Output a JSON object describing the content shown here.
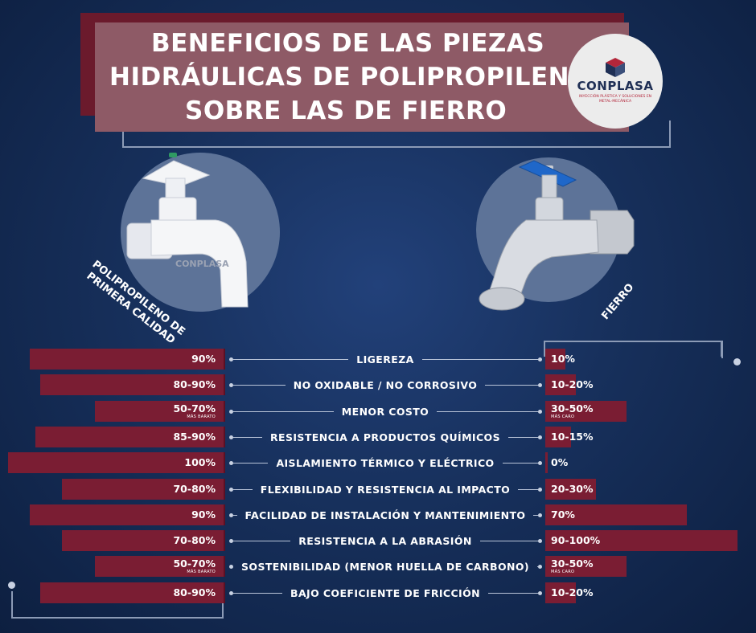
{
  "title": {
    "lines": [
      "BENEFICIOS DE LAS PIEZAS",
      "HIDRÁULICAS DE POLIPROPILENO",
      "SOBRE LAS DE FIERRO"
    ]
  },
  "logo": {
    "name": "CONPLASA",
    "subtitle": "INYECCIÓN PLÁSTICA Y SOLUCIONES EN METAL-MECÁNICA"
  },
  "left_product": {
    "image_icon": "white-plastic-faucet-icon",
    "brand_mark": "CONPLASA",
    "label_lines": [
      "POLIPROPILENO DE",
      "PRIMERA CALIDAD"
    ]
  },
  "right_product": {
    "image_icon": "metal-faucet-icon",
    "label": "FIERRO"
  },
  "colors": {
    "bar": "#7a1d33",
    "background": "#17305c",
    "title_box": "#8e5a66"
  },
  "rows": [
    {
      "label": "LIGEREZA",
      "left": "90%",
      "left_note": "",
      "left_level": 0.9,
      "right": "10%",
      "right_note": "",
      "right_level": 0.1
    },
    {
      "label": "NO OXIDABLE / NO CORROSIVO",
      "left": "80-90%",
      "left_note": "",
      "left_level": 0.85,
      "right": "10-20%",
      "right_note": "",
      "right_level": 0.15
    },
    {
      "label": "MENOR COSTO",
      "left": "50-70%",
      "left_note": "MÁS BARATO",
      "left_level": 0.6,
      "right": "30-50%",
      "right_note": "MÁS CARO",
      "right_level": 0.4
    },
    {
      "label": "RESISTENCIA A PRODUCTOS QUÍMICOS",
      "left": "85-90%",
      "left_note": "",
      "left_level": 0.875,
      "right": "10-15%",
      "right_note": "",
      "right_level": 0.125
    },
    {
      "label": "AISLAMIENTO TÉRMICO Y ELÉCTRICO",
      "left": "100%",
      "left_note": "",
      "left_level": 1.0,
      "right": "0%",
      "right_note": "",
      "right_level": 0.0
    },
    {
      "label": "FLEXIBILIDAD Y RESISTENCIA AL IMPACTO",
      "left": "70-80%",
      "left_note": "",
      "left_level": 0.75,
      "right": "20-30%",
      "right_note": "",
      "right_level": 0.25
    },
    {
      "label": "FACILIDAD DE INSTALACIÓN Y MANTENIMIENTO",
      "left": "90%",
      "left_note": "",
      "left_level": 0.9,
      "right": "70%",
      "right_note": "",
      "right_level": 0.7
    },
    {
      "label": "RESISTENCIA A LA ABRASIÓN",
      "left": "70-80%",
      "left_note": "",
      "left_level": 0.75,
      "right": "90-100%",
      "right_note": "",
      "right_level": 0.95
    },
    {
      "label": "SOSTENIBILIDAD (MENOR HUELLA DE CARBONO)",
      "left": "50-70%",
      "left_note": "MÁS BARATO",
      "left_level": 0.6,
      "right": "30-50%",
      "right_note": "MÁS CARO",
      "right_level": 0.4
    },
    {
      "label": "BAJO COEFICIENTE DE FRICCIÓN",
      "left": "80-90%",
      "left_note": "",
      "left_level": 0.85,
      "right": "10-20%",
      "right_note": "",
      "right_level": 0.15
    }
  ]
}
